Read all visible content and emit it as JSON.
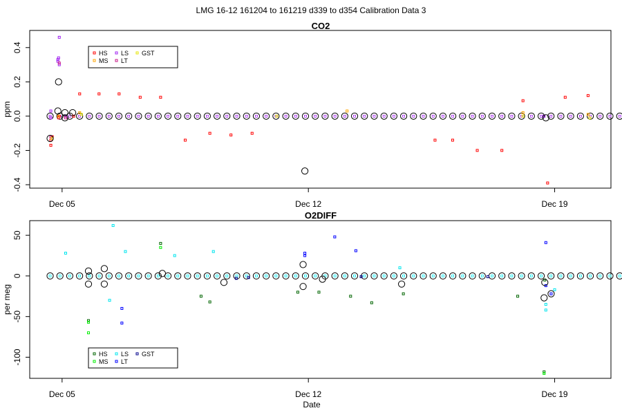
{
  "page_title": "LMG   16-12    161204 to 161219    d339 to d354   Calibration Data 3",
  "colors": {
    "HS": "#ff0000",
    "MS": "#ffa500",
    "LS": "#a020f0",
    "LT": "#c71585",
    "GST": "#e6e600",
    "O2_HS": "#006400",
    "O2_MS": "#00ee00",
    "O2_LS": "#00e5ee",
    "O2_LT": "#0000ff",
    "O2_GST": "#00008b",
    "mean_circle": "#000000"
  },
  "chart_data": [
    {
      "type": "scatter",
      "title": "CO2",
      "xlabel": "",
      "ylabel": "ppm",
      "x_ticks": [
        "Dec 05",
        "Dec 12",
        "Dec 19"
      ],
      "x_tick_days": [
        5,
        12,
        19
      ],
      "xlim": [
        4.08,
        20.6
      ],
      "y_ticks": [
        "-0.4",
        "-0.2",
        "0.0",
        "0.2",
        "0.4"
      ],
      "y_tick_values": [
        -0.4,
        -0.2,
        0.0,
        0.2,
        0.4
      ],
      "ylim": [
        -0.42,
        0.5
      ],
      "legend": [
        "HS",
        "MS",
        "LS",
        "LT",
        "GST"
      ],
      "legend_position": "top-left",
      "series": [
        {
          "name": "HS",
          "color_key": "HS",
          "points": [
            [
              4.68,
              -0.17
            ],
            [
              4.68,
              -0.14
            ],
            [
              4.72,
              -0.12
            ],
            [
              4.9,
              -0.01
            ],
            [
              4.92,
              0.0
            ],
            [
              5.33,
              0.0
            ],
            [
              5.5,
              0.13
            ],
            [
              6.05,
              0.13
            ],
            [
              6.62,
              0.13
            ],
            [
              7.22,
              0.11
            ],
            [
              7.8,
              0.11
            ],
            [
              8.5,
              -0.14
            ],
            [
              9.2,
              -0.1
            ],
            [
              9.8,
              -0.11
            ],
            [
              10.4,
              -0.1
            ],
            [
              15.6,
              -0.14
            ],
            [
              16.1,
              -0.14
            ],
            [
              16.8,
              -0.2
            ],
            [
              17.5,
              -0.2
            ],
            [
              18.1,
              0.09
            ],
            [
              18.8,
              -0.39
            ],
            [
              19.3,
              0.11
            ],
            [
              19.95,
              0.12
            ]
          ]
        },
        {
          "name": "MS",
          "color_key": "MS",
          "points": [
            [
              4.68,
              -0.12
            ],
            [
              4.9,
              0.0
            ],
            [
              5.5,
              0.02
            ],
            [
              13.1,
              0.03
            ],
            [
              18.1,
              0.02
            ],
            [
              19.95,
              0.01
            ]
          ]
        },
        {
          "name": "LS",
          "color_key": "LS",
          "points": [
            [
              4.68,
              -0.01
            ],
            [
              4.68,
              0.03
            ],
            [
              4.88,
              0.32
            ],
            [
              4.88,
              0.33
            ],
            [
              4.9,
              0.34
            ],
            [
              4.92,
              0.3
            ],
            [
              4.92,
              0.46
            ],
            [
              5.1,
              0.0
            ],
            [
              18.7,
              0.0
            ]
          ]
        },
        {
          "name": "LT",
          "color_key": "LT",
          "points": [
            [
              4.68,
              -0.12
            ],
            [
              4.92,
              0.31
            ],
            [
              5.1,
              -0.01
            ]
          ]
        },
        {
          "name": "GST",
          "color_key": "GST",
          "points": [
            [
              4.72,
              -0.13
            ],
            [
              5.55,
              0.01
            ],
            [
              11.1,
              0.0
            ],
            [
              18.1,
              0.0
            ],
            [
              20.0,
              -0.01
            ]
          ]
        }
      ],
      "mean_circles": [
        [
          4.66,
          -0.13
        ],
        [
          4.9,
          0.2
        ],
        [
          4.88,
          0.03
        ],
        [
          5.08,
          0.02
        ],
        [
          5.08,
          -0.01
        ],
        [
          5.3,
          0.02
        ],
        [
          11.9,
          -0.32
        ],
        [
          18.75,
          -0.01
        ]
      ],
      "baseline": {
        "day_start": 4.66,
        "day_end": 20.85,
        "count": 59,
        "value": 0.0
      }
    },
    {
      "type": "scatter",
      "title": "O2DIFF",
      "xlabel": "Date",
      "ylabel": "per meg",
      "x_ticks": [
        "Dec 05",
        "Dec 12",
        "Dec 19"
      ],
      "x_tick_days": [
        5,
        12,
        19
      ],
      "xlim": [
        4.08,
        20.6
      ],
      "y_ticks": [
        "-100",
        "-50",
        "0",
        "50"
      ],
      "y_tick_values": [
        -100,
        -50,
        0,
        50
      ],
      "ylim": [
        -126,
        68
      ],
      "legend": [
        "HS",
        "MS",
        "LS",
        "LT",
        "GST"
      ],
      "legend_position": "bottom-left",
      "series": [
        {
          "name": "HS",
          "color_key": "O2_HS",
          "points": [
            [
              5.75,
              -55
            ],
            [
              7.8,
              40
            ],
            [
              8.95,
              -25
            ],
            [
              9.2,
              -32
            ],
            [
              11.7,
              -20
            ],
            [
              12.3,
              -20
            ],
            [
              13.2,
              -25
            ],
            [
              13.8,
              -33
            ],
            [
              14.7,
              -22
            ],
            [
              17.95,
              -25
            ],
            [
              18.7,
              -118
            ],
            [
              18.72,
              -5
            ]
          ]
        },
        {
          "name": "MS",
          "color_key": "O2_MS",
          "points": [
            [
              5.75,
              -70
            ],
            [
              5.75,
              -57
            ],
            [
              7.8,
              35
            ],
            [
              18.7,
              -120
            ]
          ]
        },
        {
          "name": "LS",
          "color_key": "O2_LS",
          "points": [
            [
              6.45,
              62
            ],
            [
              6.35,
              -30
            ],
            [
              5.1,
              28
            ],
            [
              9.3,
              30
            ],
            [
              18.75,
              -42
            ],
            [
              18.75,
              -35
            ],
            [
              19.0,
              -17
            ],
            [
              14.6,
              10
            ],
            [
              6.8,
              30
            ],
            [
              8.2,
              25
            ]
          ]
        },
        {
          "name": "LT",
          "color_key": "O2_LT",
          "points": [
            [
              6.7,
              -40
            ],
            [
              6.7,
              -58
            ],
            [
              11.9,
              28
            ],
            [
              11.9,
              25
            ],
            [
              12.75,
              48
            ],
            [
              13.35,
              31
            ],
            [
              18.75,
              41
            ],
            [
              18.75,
              -12
            ],
            [
              18.9,
              -22
            ]
          ]
        },
        {
          "name": "GST",
          "color_key": "O2_GST",
          "points": [
            [
              9.95,
              -3
            ],
            [
              10.3,
              -2
            ],
            [
              13.5,
              -1
            ],
            [
              17.1,
              -1
            ]
          ]
        }
      ],
      "mean_circles": [
        [
          5.75,
          -10
        ],
        [
          5.75,
          6
        ],
        [
          6.2,
          9
        ],
        [
          6.2,
          -10
        ],
        [
          7.85,
          3
        ],
        [
          9.6,
          -8
        ],
        [
          11.85,
          14
        ],
        [
          11.85,
          -13
        ],
        [
          12.4,
          -4
        ],
        [
          14.65,
          -10
        ],
        [
          18.7,
          -27
        ],
        [
          18.72,
          -8
        ],
        [
          18.9,
          -22
        ]
      ],
      "baseline": {
        "day_start": 4.66,
        "day_end": 20.85,
        "count": 59,
        "value": 0.0
      }
    }
  ]
}
